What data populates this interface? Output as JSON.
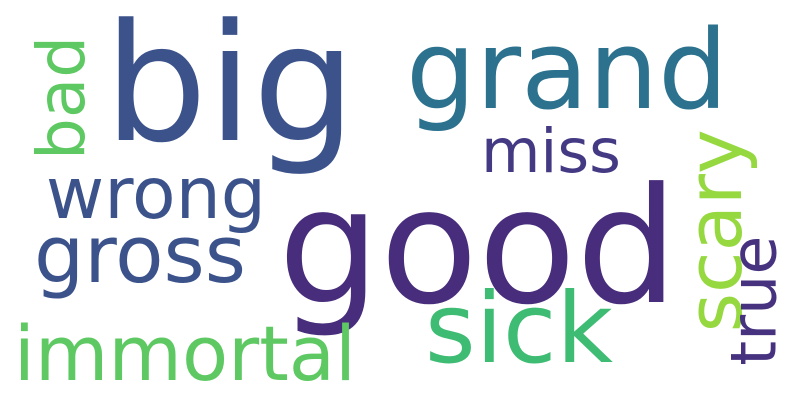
{
  "background_color": "#ffffff",
  "words": {
    "good": {
      "text": "good",
      "color": "#472d7b"
    },
    "big": {
      "text": "big",
      "color": "#3b528b"
    },
    "grand": {
      "text": "grand",
      "color": "#2c728e"
    },
    "sick": {
      "text": "sick",
      "color": "#3fbc73"
    },
    "immortal": {
      "text": "immortal",
      "color": "#5ec962"
    },
    "gross": {
      "text": "gross",
      "color": "#3b528b"
    },
    "wrong": {
      "text": "wrong",
      "color": "#3b528b"
    },
    "miss": {
      "text": "miss",
      "color": "#443a83"
    },
    "scary": {
      "text": "scary",
      "color": "#95d840"
    },
    "true": {
      "text": "true",
      "color": "#46327e"
    },
    "bad": {
      "text": "bad",
      "color": "#5ec962"
    }
  }
}
